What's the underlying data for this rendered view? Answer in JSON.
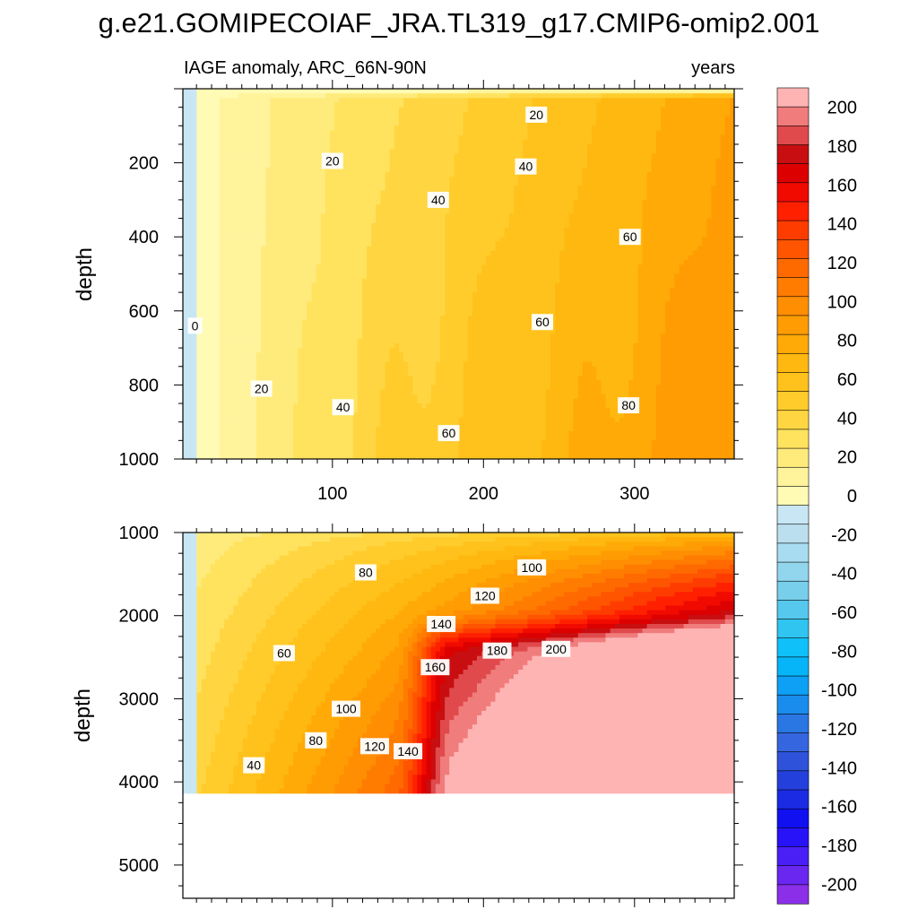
{
  "chart_data": {
    "type": "contour",
    "title": "g.e21.GOMIPECOIAF_JRA.TL319_g17.CMIP6-omip2.001",
    "units": "years",
    "panels": [
      {
        "name": "upper",
        "subtitle_left": "IAGE anomaly, ARC_66N-90N",
        "subtitle_right": "years",
        "ylabel": "depth",
        "xlim": [
          1,
          366
        ],
        "ylim": [
          1000,
          0
        ],
        "xticks": [
          100,
          200,
          300
        ],
        "xtick_labels": [
          "100",
          "200",
          "300"
        ],
        "yticks": [
          200,
          400,
          600,
          800,
          1000
        ],
        "ytick_labels": [
          "200",
          "400",
          "600",
          "800",
          "1000"
        ],
        "contour_labels": [
          {
            "text": "0",
            "x": 9,
            "depth": 640
          },
          {
            "text": "20",
            "x": 53,
            "depth": 810
          },
          {
            "text": "20",
            "x": 100,
            "depth": 195
          },
          {
            "text": "20",
            "x": 235,
            "depth": 70
          },
          {
            "text": "40",
            "x": 107,
            "depth": 860
          },
          {
            "text": "40",
            "x": 170,
            "depth": 300
          },
          {
            "text": "40",
            "x": 228,
            "depth": 210
          },
          {
            "text": "60",
            "x": 177,
            "depth": 930
          },
          {
            "text": "60",
            "x": 239,
            "depth": 630
          },
          {
            "text": "60",
            "x": 297,
            "depth": 400
          },
          {
            "text": "80",
            "x": 296,
            "depth": 855
          }
        ]
      },
      {
        "name": "lower",
        "ylabel": "depth",
        "xlim": [
          1,
          366
        ],
        "ylim": [
          5400,
          1000
        ],
        "ocean_bottom_depth": 4120,
        "yticks": [
          1000,
          2000,
          3000,
          4000,
          5000
        ],
        "ytick_labels": [
          "1000",
          "2000",
          "3000",
          "4000",
          "5000"
        ],
        "contour_labels": [
          {
            "text": "40",
            "x": 48,
            "depth": 3800
          },
          {
            "text": "60",
            "x": 68,
            "depth": 2450
          },
          {
            "text": "80",
            "x": 89,
            "depth": 3500
          },
          {
            "text": "80",
            "x": 122,
            "depth": 1480
          },
          {
            "text": "100",
            "x": 109,
            "depth": 3120
          },
          {
            "text": "100",
            "x": 232,
            "depth": 1420
          },
          {
            "text": "120",
            "x": 128,
            "depth": 3570
          },
          {
            "text": "120",
            "x": 201,
            "depth": 1760
          },
          {
            "text": "140",
            "x": 150,
            "depth": 3630
          },
          {
            "text": "140",
            "x": 172,
            "depth": 2100
          },
          {
            "text": "160",
            "x": 168,
            "depth": 2620
          },
          {
            "text": "180",
            "x": 209,
            "depth": 2420
          },
          {
            "text": "200",
            "x": 248,
            "depth": 2400
          }
        ]
      }
    ],
    "colorbar": {
      "levels": [
        -210,
        -200,
        -190,
        -180,
        -170,
        -160,
        -150,
        -140,
        -130,
        -120,
        -110,
        -100,
        -90,
        -80,
        -70,
        -60,
        -50,
        -40,
        -30,
        -20,
        -10,
        0,
        10,
        20,
        30,
        40,
        50,
        60,
        70,
        80,
        90,
        100,
        110,
        120,
        130,
        140,
        150,
        160,
        170,
        180,
        190,
        200,
        210
      ],
      "colors": [
        "#8b2fe8",
        "#6a27f0",
        "#4a1ff5",
        "#2812f8",
        "#1010f0",
        "#1b2be4",
        "#2440dc",
        "#2e52da",
        "#3566df",
        "#2a76e2",
        "#1a8cee",
        "#0ea0f4",
        "#06b4f8",
        "#10c0f8",
        "#30c4f0",
        "#56c8ee",
        "#78cfeb",
        "#92d6ee",
        "#a8dcf0",
        "#bcdfef",
        "#c8e6f4",
        "#fffbb4",
        "#fff39c",
        "#ffeb7c",
        "#ffe25e",
        "#ffd642",
        "#ffcc2c",
        "#ffc21c",
        "#ffb810",
        "#ffaa06",
        "#ff9c04",
        "#ff8e02",
        "#ff7c00",
        "#ff6a00",
        "#ff5400",
        "#ff3c00",
        "#ff2000",
        "#f00a00",
        "#dc0000",
        "#c80e10",
        "#e04a4c",
        "#f07c7c",
        "#ffb4b4"
      ],
      "tick_values": [
        200,
        180,
        160,
        140,
        120,
        100,
        80,
        60,
        40,
        20,
        0,
        -20,
        -40,
        -60,
        -80,
        -100,
        -120,
        -140,
        -160,
        -180,
        -200
      ],
      "tick_labels": [
        "200",
        "180",
        "160",
        "140",
        "120",
        "100",
        "80",
        "60",
        "40",
        "20",
        "0",
        "-20",
        "-40",
        "-60",
        "-80",
        "-100",
        "-120",
        "-140",
        "-160",
        "-180",
        "-200"
      ]
    }
  }
}
